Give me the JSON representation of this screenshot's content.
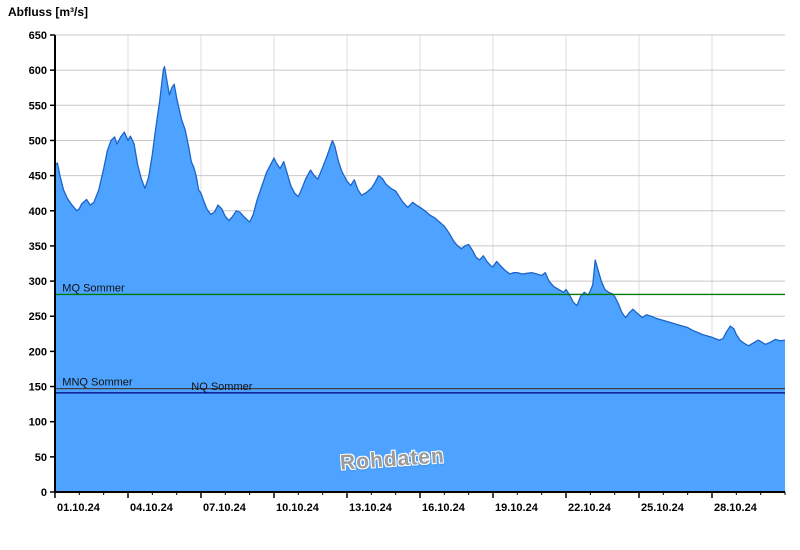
{
  "watermark": {
    "text": "Rohdaten"
  },
  "chart_data": {
    "type": "area",
    "title": "Abfluss [m³/s]",
    "xlabel": "",
    "ylabel": "Abfluss [m³/s]",
    "ylim": [
      0,
      650
    ],
    "yticks": [
      0,
      50,
      100,
      150,
      200,
      250,
      300,
      350,
      400,
      450,
      500,
      550,
      600,
      650
    ],
    "xlim": [
      1,
      31
    ],
    "xticks": [
      {
        "label": "01.10.24",
        "day": 1
      },
      {
        "label": "04.10.24",
        "day": 4
      },
      {
        "label": "07.10.24",
        "day": 7
      },
      {
        "label": "10.10.24",
        "day": 10
      },
      {
        "label": "13.10.24",
        "day": 13
      },
      {
        "label": "16.10.24",
        "day": 16
      },
      {
        "label": "19.10.24",
        "day": 19
      },
      {
        "label": "22.10.24",
        "day": 22
      },
      {
        "label": "25.10.24",
        "day": 25
      },
      {
        "label": "28.10.24",
        "day": 28
      }
    ],
    "grid": true,
    "legend_position": "none",
    "ref_lines": [
      {
        "id": "mq-sommer",
        "label": "MQ Sommer",
        "value": 281,
        "label_day": 1.3,
        "color": "#007a00"
      },
      {
        "id": "mnq-sommer",
        "label": "MNQ Sommer",
        "value": 147,
        "label_day": 1.3,
        "color": "#404040"
      },
      {
        "id": "nq-sommer",
        "label": "NQ Sommer",
        "value": 141,
        "label_day": 6.6,
        "color": "#000080"
      }
    ],
    "colors": {
      "fill": "#4da3ff",
      "stroke": "#1c64c8",
      "grid": "#c8c8c8",
      "grid_v": "#dcdcdc",
      "axis": "#000000"
    },
    "series": [
      {
        "name": "Abfluss Rohdaten",
        "x": [
          1.0,
          1.1,
          1.2,
          1.35,
          1.5,
          1.7,
          1.9,
          2.0,
          2.1,
          2.3,
          2.45,
          2.6,
          2.8,
          3.0,
          3.15,
          3.3,
          3.45,
          3.55,
          3.7,
          3.85,
          4.0,
          4.1,
          4.25,
          4.4,
          4.55,
          4.7,
          4.85,
          5.0,
          5.15,
          5.3,
          5.45,
          5.5,
          5.6,
          5.7,
          5.8,
          5.9,
          6.0,
          6.1,
          6.2,
          6.35,
          6.5,
          6.6,
          6.7,
          6.8,
          6.9,
          7.0,
          7.1,
          7.25,
          7.4,
          7.55,
          7.7,
          7.85,
          8.0,
          8.15,
          8.3,
          8.45,
          8.6,
          8.75,
          8.9,
          9.0,
          9.15,
          9.3,
          9.5,
          9.7,
          9.85,
          10.0,
          10.1,
          10.25,
          10.4,
          10.55,
          10.7,
          10.85,
          11.0,
          11.15,
          11.3,
          11.5,
          11.65,
          11.8,
          12.0,
          12.15,
          12.3,
          12.4,
          12.5,
          12.65,
          12.8,
          13.0,
          13.15,
          13.3,
          13.45,
          13.6,
          13.8,
          14.0,
          14.15,
          14.3,
          14.45,
          14.6,
          14.8,
          15.0,
          15.15,
          15.3,
          15.5,
          15.7,
          15.85,
          16.0,
          16.2,
          16.4,
          16.6,
          16.8,
          17.0,
          17.2,
          17.4,
          17.55,
          17.7,
          17.85,
          18.0,
          18.15,
          18.3,
          18.45,
          18.6,
          18.75,
          18.9,
          19.0,
          19.15,
          19.3,
          19.5,
          19.7,
          19.85,
          20.0,
          20.2,
          20.4,
          20.6,
          20.8,
          21.0,
          21.15,
          21.3,
          21.5,
          21.7,
          21.9,
          22.0,
          22.15,
          22.3,
          22.45,
          22.6,
          22.75,
          22.9,
          23.0,
          23.1,
          23.2,
          23.3,
          23.45,
          23.6,
          23.75,
          23.9,
          24.0,
          24.15,
          24.3,
          24.45,
          24.6,
          24.75,
          24.9,
          25.0,
          25.15,
          25.3,
          25.5,
          25.7,
          25.9,
          26.0,
          26.2,
          26.4,
          26.6,
          26.8,
          27.0,
          27.2,
          27.4,
          27.6,
          27.8,
          28.0,
          28.15,
          28.3,
          28.45,
          28.6,
          28.75,
          28.9,
          29.0,
          29.15,
          29.3,
          29.5,
          29.7,
          29.9,
          30.0,
          30.2,
          30.4,
          30.6,
          30.8,
          31.0
        ],
        "y": [
          465,
          468,
          450,
          430,
          418,
          408,
          400,
          403,
          410,
          416,
          408,
          412,
          430,
          460,
          485,
          500,
          505,
          495,
          505,
          512,
          500,
          506,
          495,
          465,
          445,
          432,
          448,
          480,
          520,
          555,
          600,
          605,
          585,
          565,
          575,
          580,
          560,
          545,
          530,
          515,
          490,
          470,
          462,
          450,
          430,
          425,
          415,
          402,
          395,
          398,
          408,
          403,
          392,
          386,
          392,
          400,
          398,
          392,
          387,
          384,
          395,
          415,
          435,
          455,
          465,
          475,
          468,
          460,
          470,
          452,
          435,
          425,
          420,
          432,
          445,
          458,
          450,
          445,
          462,
          475,
          490,
          500,
          492,
          470,
          455,
          442,
          436,
          444,
          430,
          422,
          426,
          432,
          440,
          450,
          446,
          438,
          432,
          428,
          420,
          412,
          405,
          412,
          408,
          405,
          400,
          394,
          390,
          384,
          378,
          368,
          356,
          350,
          346,
          350,
          352,
          344,
          334,
          330,
          336,
          328,
          322,
          320,
          328,
          322,
          315,
          310,
          312,
          312,
          310,
          311,
          312,
          310,
          308,
          312,
          300,
          292,
          288,
          284,
          288,
          280,
          270,
          265,
          278,
          284,
          280,
          286,
          295,
          330,
          318,
          300,
          288,
          284,
          282,
          278,
          268,
          255,
          248,
          255,
          260,
          255,
          252,
          248,
          252,
          250,
          247,
          245,
          244,
          242,
          240,
          238,
          236,
          234,
          230,
          227,
          224,
          222,
          220,
          218,
          216,
          218,
          228,
          236,
          232,
          224,
          216,
          212,
          208,
          212,
          216,
          214,
          210,
          213,
          217,
          215,
          216
        ]
      }
    ]
  }
}
